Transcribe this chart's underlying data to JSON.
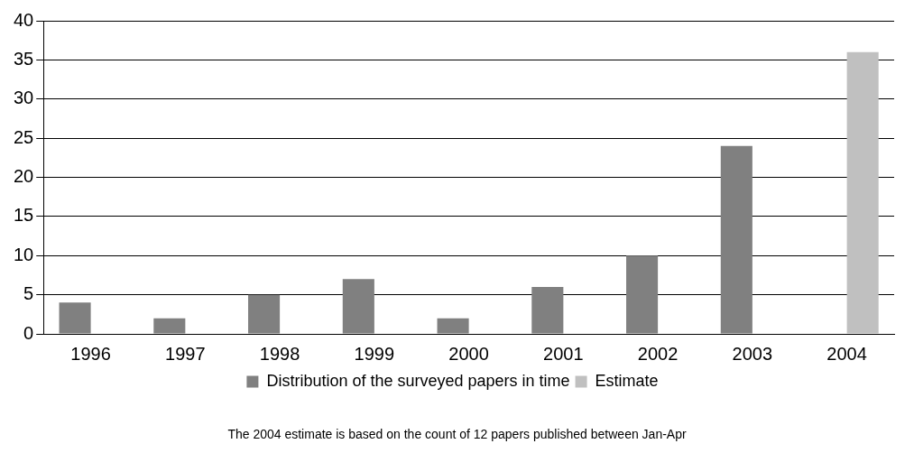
{
  "chart_data": {
    "type": "bar",
    "categories": [
      "1996",
      "1997",
      "1998",
      "1999",
      "2000",
      "2001",
      "2002",
      "2003",
      "2004"
    ],
    "series": [
      {
        "name": "Distribution of the surveyed papers in time",
        "color": "#808080",
        "values": [
          4,
          2,
          5,
          7,
          2,
          6,
          10,
          24,
          null
        ]
      },
      {
        "name": "Estimate",
        "color": "#c0c0c0",
        "values": [
          null,
          null,
          null,
          null,
          null,
          null,
          null,
          null,
          36
        ]
      }
    ],
    "ylim": [
      0,
      40
    ],
    "yticks": [
      0,
      5,
      10,
      15,
      20,
      25,
      30,
      35,
      40
    ],
    "grid": "y",
    "legend": "bottom",
    "annotations": [
      "The 2004 estimate is based on the count of 12 papers published between Jan-Apr"
    ]
  }
}
